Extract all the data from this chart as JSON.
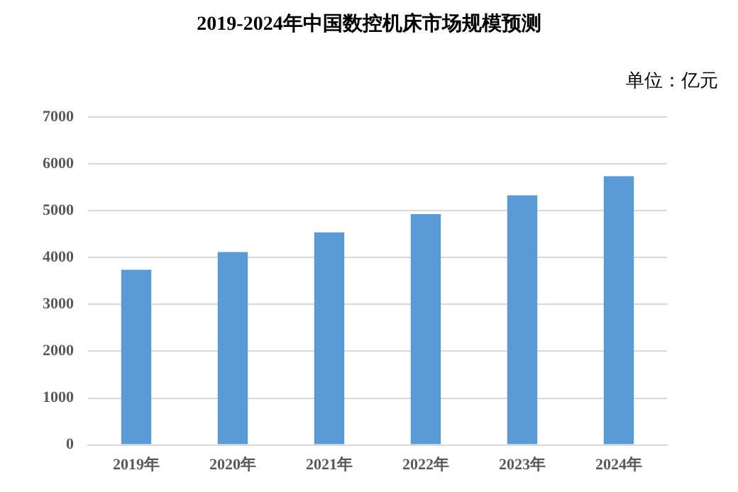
{
  "chart_data": {
    "type": "bar",
    "title": "2019-2024年中国数控机床市场规模预测",
    "annotations": [
      "单位：亿元"
    ],
    "categories": [
      "2019年",
      "2020年",
      "2021年",
      "2022年",
      "2023年",
      "2024年"
    ],
    "values": [
      3740,
      4120,
      4540,
      4930,
      5330,
      5740
    ],
    "color": "#5b9bd5",
    "ylim": [
      0,
      7000
    ],
    "yticks": [
      0,
      1000,
      2000,
      3000,
      4000,
      5000,
      6000,
      7000
    ],
    "grid": "y",
    "legend": false
  }
}
